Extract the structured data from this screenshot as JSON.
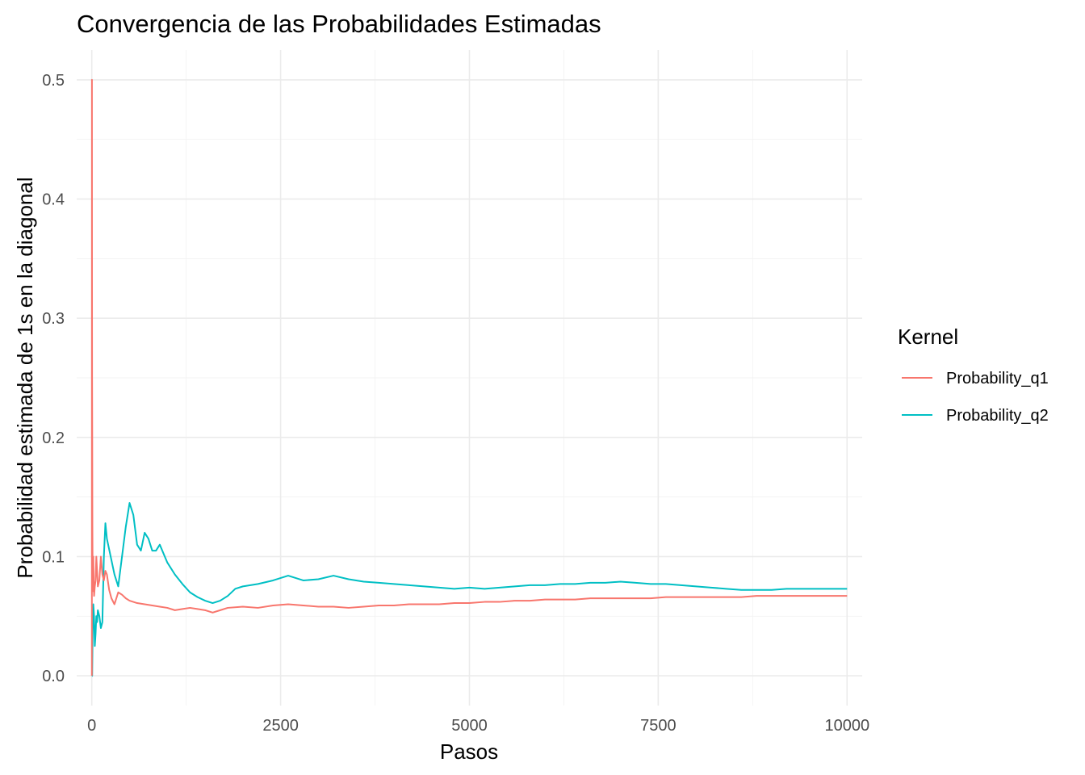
{
  "chart_data": {
    "type": "line",
    "title": "Convergencia de las Probabilidades Estimadas",
    "xlabel": "Pasos",
    "ylabel": "Probabilidad estimada de 1s en la diagonal",
    "xlim": [
      -200,
      10200
    ],
    "ylim": [
      -0.025,
      0.525
    ],
    "x_ticks": [
      0,
      2500,
      5000,
      7500,
      10000
    ],
    "x_tick_labels": [
      "0",
      "2500",
      "5000",
      "7500",
      "10000"
    ],
    "y_ticks": [
      0.0,
      0.1,
      0.2,
      0.3,
      0.4,
      0.5
    ],
    "y_tick_labels": [
      "0.0",
      "0.1",
      "0.2",
      "0.3",
      "0.4",
      "0.5"
    ],
    "grid": true,
    "legend": {
      "title": "Kernel",
      "position": "right"
    },
    "series": [
      {
        "name": "Probability_q1",
        "color": "#F8766D",
        "x": [
          1,
          2,
          3,
          4,
          6,
          8,
          10,
          14,
          20,
          25,
          30,
          40,
          50,
          60,
          80,
          100,
          120,
          140,
          160,
          180,
          200,
          230,
          260,
          300,
          350,
          400,
          450,
          500,
          600,
          700,
          800,
          900,
          1000,
          1100,
          1200,
          1300,
          1400,
          1500,
          1600,
          1700,
          1800,
          2000,
          2200,
          2400,
          2600,
          2800,
          3000,
          3200,
          3400,
          3600,
          3800,
          4000,
          4200,
          4400,
          4600,
          4800,
          5000,
          5200,
          5400,
          5600,
          5800,
          6000,
          6200,
          6400,
          6600,
          6800,
          7000,
          7200,
          7400,
          7600,
          7800,
          8000,
          8200,
          8400,
          8600,
          8800,
          9000,
          9200,
          9400,
          9600,
          9800,
          10000
        ],
        "values": [
          0.0,
          0.5,
          0.333,
          0.25,
          0.2,
          0.125,
          0.1,
          0.071,
          0.1,
          0.08,
          0.067,
          0.075,
          0.08,
          0.1,
          0.075,
          0.08,
          0.1,
          0.085,
          0.08,
          0.088,
          0.085,
          0.072,
          0.065,
          0.06,
          0.07,
          0.068,
          0.065,
          0.063,
          0.061,
          0.06,
          0.059,
          0.058,
          0.057,
          0.055,
          0.056,
          0.057,
          0.056,
          0.055,
          0.053,
          0.055,
          0.057,
          0.058,
          0.057,
          0.059,
          0.06,
          0.059,
          0.058,
          0.058,
          0.057,
          0.058,
          0.059,
          0.059,
          0.06,
          0.06,
          0.06,
          0.061,
          0.061,
          0.062,
          0.062,
          0.063,
          0.063,
          0.064,
          0.064,
          0.064,
          0.065,
          0.065,
          0.065,
          0.065,
          0.065,
          0.066,
          0.066,
          0.066,
          0.066,
          0.066,
          0.066,
          0.067,
          0.067,
          0.067,
          0.067,
          0.067,
          0.067,
          0.067
        ]
      },
      {
        "name": "Probability_q2",
        "color": "#00BFC4",
        "x": [
          1,
          5,
          10,
          15,
          20,
          30,
          40,
          50,
          60,
          70,
          80,
          100,
          120,
          140,
          160,
          180,
          200,
          250,
          300,
          350,
          400,
          450,
          500,
          550,
          600,
          650,
          700,
          750,
          800,
          850,
          900,
          1000,
          1100,
          1200,
          1300,
          1400,
          1500,
          1600,
          1700,
          1800,
          1900,
          2000,
          2200,
          2400,
          2600,
          2800,
          3000,
          3200,
          3400,
          3600,
          3800,
          4000,
          4200,
          4400,
          4600,
          4800,
          5000,
          5200,
          5400,
          5600,
          5800,
          6000,
          6200,
          6400,
          6600,
          6800,
          7000,
          7200,
          7400,
          7600,
          7800,
          8000,
          8200,
          8400,
          8600,
          8800,
          9000,
          9200,
          9400,
          9600,
          9800,
          10000
        ],
        "values": [
          0.0,
          0.0,
          0.03,
          0.05,
          0.06,
          0.05,
          0.025,
          0.035,
          0.05,
          0.045,
          0.055,
          0.05,
          0.04,
          0.045,
          0.1,
          0.128,
          0.115,
          0.1,
          0.085,
          0.075,
          0.1,
          0.125,
          0.145,
          0.135,
          0.11,
          0.105,
          0.12,
          0.115,
          0.105,
          0.105,
          0.11,
          0.095,
          0.085,
          0.077,
          0.07,
          0.066,
          0.063,
          0.061,
          0.063,
          0.067,
          0.073,
          0.075,
          0.077,
          0.08,
          0.084,
          0.08,
          0.081,
          0.084,
          0.081,
          0.079,
          0.078,
          0.077,
          0.076,
          0.075,
          0.074,
          0.073,
          0.074,
          0.073,
          0.074,
          0.075,
          0.076,
          0.076,
          0.077,
          0.077,
          0.078,
          0.078,
          0.079,
          0.078,
          0.077,
          0.077,
          0.076,
          0.075,
          0.074,
          0.073,
          0.072,
          0.072,
          0.072,
          0.073,
          0.073,
          0.073,
          0.073,
          0.073
        ]
      }
    ]
  }
}
